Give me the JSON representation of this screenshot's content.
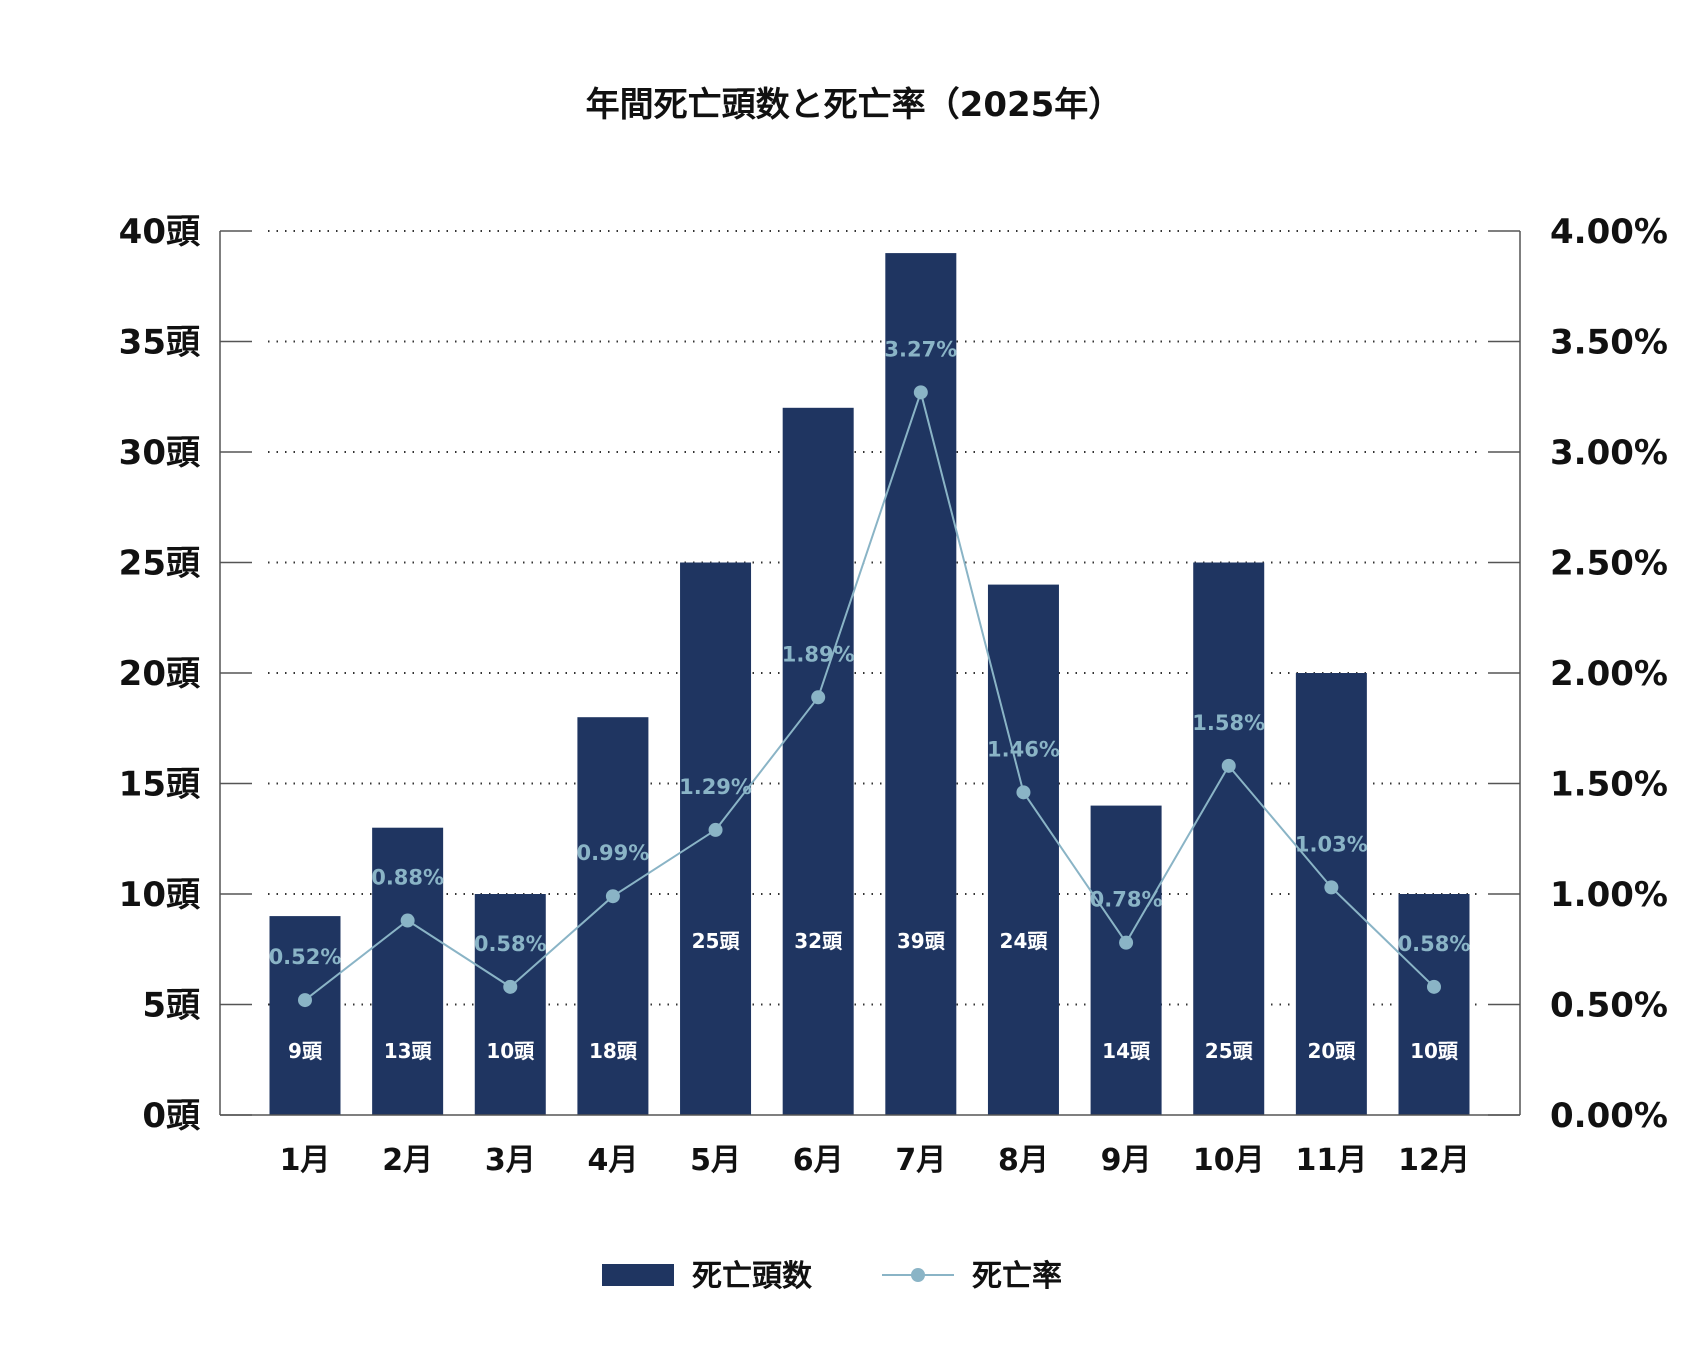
{
  "chart_data": {
    "type": "bar",
    "title": "年間死亡頭数と死亡率（2025年）",
    "categories": [
      "1月",
      "2月",
      "3月",
      "4月",
      "5月",
      "6月",
      "7月",
      "8月",
      "9月",
      "10月",
      "11月",
      "12月"
    ],
    "series": [
      {
        "name": "死亡頭数",
        "type": "bar",
        "axis": "left",
        "unit": "頭",
        "values": [
          9,
          13,
          10,
          18,
          25,
          32,
          39,
          24,
          14,
          25,
          20,
          10
        ],
        "labels": [
          "9頭",
          "13頭",
          "10頭",
          "18頭",
          "25頭",
          "32頭",
          "39頭",
          "24頭",
          "14頭",
          "25頭",
          "20頭",
          "10頭"
        ]
      },
      {
        "name": "死亡率",
        "type": "line",
        "axis": "right",
        "unit": "%",
        "values": [
          0.52,
          0.88,
          0.58,
          0.99,
          1.29,
          1.89,
          3.27,
          1.46,
          0.78,
          1.58,
          1.03,
          0.58
        ],
        "labels": [
          "0.52%",
          "0.88%",
          "0.58%",
          "0.99%",
          "1.29%",
          "1.89%",
          "3.27%",
          "1.46%",
          "0.78%",
          "1.58%",
          "1.03%",
          "0.58%"
        ]
      }
    ],
    "y_left": {
      "range": [
        0,
        40
      ],
      "ticks": [
        "0頭",
        "5頭",
        "10頭",
        "15頭",
        "20頭",
        "25頭",
        "30頭",
        "35頭",
        "40頭"
      ]
    },
    "y_right": {
      "range": [
        0,
        4
      ],
      "ticks": [
        "0.00%",
        "0.50%",
        "1.00%",
        "1.50%",
        "2.00%",
        "2.50%",
        "3.00%",
        "3.50%",
        "4.00%"
      ]
    },
    "grid": "dotted horizontal",
    "legend_position": "bottom",
    "colors": {
      "bar": "#1f3561",
      "line": "#8ab4c6"
    }
  }
}
